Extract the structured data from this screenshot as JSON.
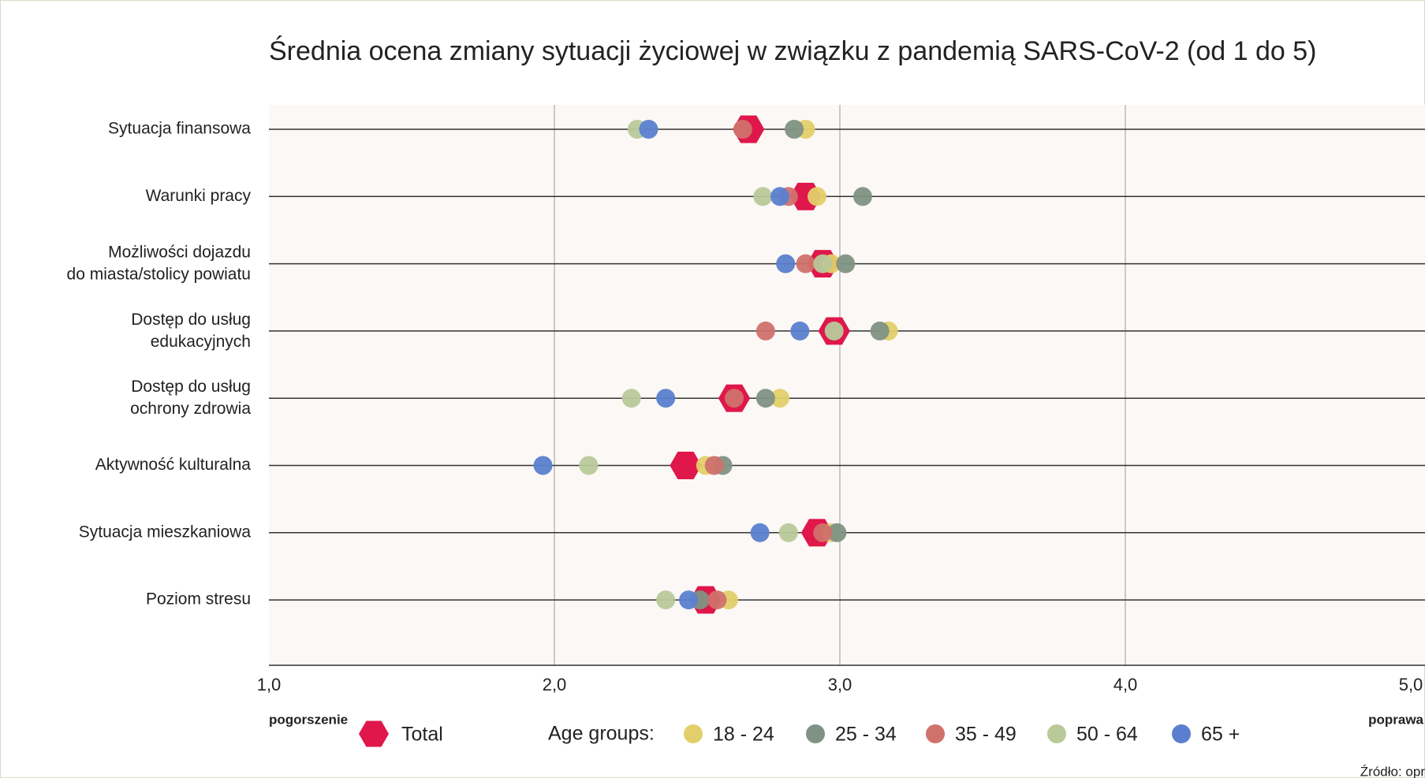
{
  "chart_data": {
    "type": "dot",
    "title": "Średnia ocena zmiany sytuacji życiowej w związku z pandemią SARS-CoV-2 (od 1 do 5)",
    "categories": [
      "Sytuacja finansowa",
      "Warunki pracy",
      "Możliwości dojazdu\ndo miasta/stolicy powiatu",
      "Dostęp do usług\nedukacyjnych",
      "Dostęp do usług\nochrony zdrowia",
      "Aktywność kulturalna",
      "Sytuacja mieszkaniowa",
      "Poziom stresu"
    ],
    "series": [
      {
        "name": "Total",
        "color": "#e0174a",
        "marker": "hexagon",
        "values": [
          2.68,
          2.88,
          2.94,
          2.98,
          2.63,
          2.46,
          2.92,
          2.53
        ]
      },
      {
        "name": "18 - 24",
        "color": "#e3cf6a",
        "values": [
          2.88,
          2.92,
          2.97,
          3.17,
          2.79,
          2.53,
          2.97,
          2.61
        ]
      },
      {
        "name": "25 - 34",
        "color": "#7f9283",
        "values": [
          2.84,
          3.08,
          3.02,
          3.14,
          2.74,
          2.59,
          2.99,
          2.51
        ]
      },
      {
        "name": "35 - 49",
        "color": "#d0716c",
        "values": [
          2.66,
          2.82,
          2.88,
          2.74,
          2.63,
          2.56,
          2.94,
          2.57
        ]
      },
      {
        "name": "50 - 64",
        "color": "#b9c99a",
        "values": [
          2.29,
          2.73,
          2.94,
          2.98,
          2.27,
          2.12,
          2.82,
          2.39
        ]
      },
      {
        "name": "65 +",
        "color": "#5b7fcf",
        "values": [
          2.33,
          2.79,
          2.81,
          2.86,
          2.39,
          1.96,
          2.72,
          2.47
        ]
      }
    ],
    "legend_title": "Age groups:",
    "xlim": [
      1,
      5
    ],
    "xticks": [
      {
        "value": 1,
        "label": "1,0"
      },
      {
        "value": 2,
        "label": "2,0"
      },
      {
        "value": 3,
        "label": "3,0"
      },
      {
        "value": 4,
        "label": "4,0"
      },
      {
        "value": 5,
        "label": "5,0"
      }
    ],
    "xaxis_left_label": "pogorszenie",
    "xaxis_right_label": "poprawa",
    "source": "Źródło: opr",
    "grid": true
  }
}
